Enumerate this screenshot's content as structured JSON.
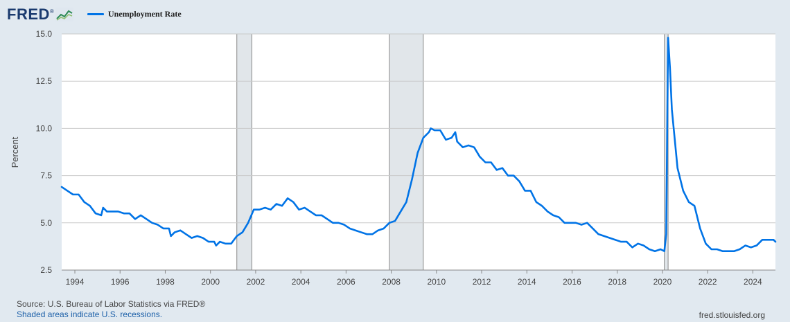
{
  "header": {
    "logo_text": "FRED",
    "logo_mark": "®",
    "legend_label": "Unemployment Rate",
    "series_color": "#0073e6"
  },
  "footer": {
    "source": "Source: U.S. Bureau of Labor Statistics via FRED®",
    "note": "Shaded areas indicate U.S. recessions.",
    "url": "fred.stlouisfed.org"
  },
  "chart_data": {
    "type": "line",
    "title": "",
    "xlabel": "",
    "ylabel": "Percent",
    "ylim": [
      2.5,
      15.0
    ],
    "xlim": [
      "1993-06",
      "2025-01"
    ],
    "y_ticks": [
      "2.5",
      "5.0",
      "7.5",
      "10.0",
      "12.5",
      "15.0"
    ],
    "x_ticks": [
      "1994",
      "1996",
      "1998",
      "2000",
      "2002",
      "2004",
      "2006",
      "2008",
      "2010",
      "2012",
      "2014",
      "2016",
      "2018",
      "2020",
      "2022",
      "2024"
    ],
    "grid": true,
    "legend_position": "top-left",
    "recessions": [
      {
        "start": "2001-03",
        "end": "2001-11"
      },
      {
        "start": "2007-12",
        "end": "2009-06"
      },
      {
        "start": "2020-02",
        "end": "2020-04"
      }
    ],
    "series": [
      {
        "name": "Unemployment Rate",
        "color": "#0073e6",
        "points": [
          [
            "1993-06",
            6.9
          ],
          [
            "1993-09",
            6.7
          ],
          [
            "1993-12",
            6.5
          ],
          [
            "1994-03",
            6.5
          ],
          [
            "1994-06",
            6.1
          ],
          [
            "1994-09",
            5.9
          ],
          [
            "1994-12",
            5.5
          ],
          [
            "1995-03",
            5.4
          ],
          [
            "1995-04",
            5.8
          ],
          [
            "1995-06",
            5.6
          ],
          [
            "1995-09",
            5.6
          ],
          [
            "1995-12",
            5.6
          ],
          [
            "1996-03",
            5.5
          ],
          [
            "1996-06",
            5.5
          ],
          [
            "1996-09",
            5.2
          ],
          [
            "1996-12",
            5.4
          ],
          [
            "1997-03",
            5.2
          ],
          [
            "1997-06",
            5.0
          ],
          [
            "1997-09",
            4.9
          ],
          [
            "1997-12",
            4.7
          ],
          [
            "1998-03",
            4.7
          ],
          [
            "1998-04",
            4.3
          ],
          [
            "1998-06",
            4.5
          ],
          [
            "1998-09",
            4.6
          ],
          [
            "1998-12",
            4.4
          ],
          [
            "1999-03",
            4.2
          ],
          [
            "1999-06",
            4.3
          ],
          [
            "1999-09",
            4.2
          ],
          [
            "1999-12",
            4.0
          ],
          [
            "2000-03",
            4.0
          ],
          [
            "2000-04",
            3.8
          ],
          [
            "2000-06",
            4.0
          ],
          [
            "2000-09",
            3.9
          ],
          [
            "2000-10",
            3.9
          ],
          [
            "2000-12",
            3.9
          ],
          [
            "2001-03",
            4.3
          ],
          [
            "2001-06",
            4.5
          ],
          [
            "2001-09",
            5.0
          ],
          [
            "2001-12",
            5.7
          ],
          [
            "2002-03",
            5.7
          ],
          [
            "2002-06",
            5.8
          ],
          [
            "2002-09",
            5.7
          ],
          [
            "2002-12",
            6.0
          ],
          [
            "2003-03",
            5.9
          ],
          [
            "2003-06",
            6.3
          ],
          [
            "2003-09",
            6.1
          ],
          [
            "2003-12",
            5.7
          ],
          [
            "2004-03",
            5.8
          ],
          [
            "2004-06",
            5.6
          ],
          [
            "2004-09",
            5.4
          ],
          [
            "2004-12",
            5.4
          ],
          [
            "2005-03",
            5.2
          ],
          [
            "2005-06",
            5.0
          ],
          [
            "2005-09",
            5.0
          ],
          [
            "2005-12",
            4.9
          ],
          [
            "2006-03",
            4.7
          ],
          [
            "2006-06",
            4.6
          ],
          [
            "2006-09",
            4.5
          ],
          [
            "2006-12",
            4.4
          ],
          [
            "2007-03",
            4.4
          ],
          [
            "2007-06",
            4.6
          ],
          [
            "2007-09",
            4.7
          ],
          [
            "2007-12",
            5.0
          ],
          [
            "2008-03",
            5.1
          ],
          [
            "2008-06",
            5.6
          ],
          [
            "2008-09",
            6.1
          ],
          [
            "2008-12",
            7.3
          ],
          [
            "2009-03",
            8.7
          ],
          [
            "2009-06",
            9.5
          ],
          [
            "2009-09",
            9.8
          ],
          [
            "2009-10",
            10.0
          ],
          [
            "2009-12",
            9.9
          ],
          [
            "2010-03",
            9.9
          ],
          [
            "2010-06",
            9.4
          ],
          [
            "2010-09",
            9.5
          ],
          [
            "2010-11",
            9.8
          ],
          [
            "2010-12",
            9.3
          ],
          [
            "2011-03",
            9.0
          ],
          [
            "2011-06",
            9.1
          ],
          [
            "2011-09",
            9.0
          ],
          [
            "2011-12",
            8.5
          ],
          [
            "2012-03",
            8.2
          ],
          [
            "2012-06",
            8.2
          ],
          [
            "2012-09",
            7.8
          ],
          [
            "2012-12",
            7.9
          ],
          [
            "2013-03",
            7.5
          ],
          [
            "2013-06",
            7.5
          ],
          [
            "2013-09",
            7.2
          ],
          [
            "2013-12",
            6.7
          ],
          [
            "2014-03",
            6.7
          ],
          [
            "2014-06",
            6.1
          ],
          [
            "2014-09",
            5.9
          ],
          [
            "2014-12",
            5.6
          ],
          [
            "2015-03",
            5.4
          ],
          [
            "2015-06",
            5.3
          ],
          [
            "2015-09",
            5.0
          ],
          [
            "2015-12",
            5.0
          ],
          [
            "2016-03",
            5.0
          ],
          [
            "2016-06",
            4.9
          ],
          [
            "2016-09",
            5.0
          ],
          [
            "2016-12",
            4.7
          ],
          [
            "2017-03",
            4.4
          ],
          [
            "2017-06",
            4.3
          ],
          [
            "2017-09",
            4.2
          ],
          [
            "2017-12",
            4.1
          ],
          [
            "2018-03",
            4.0
          ],
          [
            "2018-06",
            4.0
          ],
          [
            "2018-09",
            3.7
          ],
          [
            "2018-12",
            3.9
          ],
          [
            "2019-03",
            3.8
          ],
          [
            "2019-06",
            3.6
          ],
          [
            "2019-09",
            3.5
          ],
          [
            "2019-12",
            3.6
          ],
          [
            "2020-02",
            3.5
          ],
          [
            "2020-03",
            4.4
          ],
          [
            "2020-04",
            14.8
          ],
          [
            "2020-05",
            13.2
          ],
          [
            "2020-06",
            11.0
          ],
          [
            "2020-09",
            7.9
          ],
          [
            "2020-12",
            6.7
          ],
          [
            "2021-03",
            6.1
          ],
          [
            "2021-06",
            5.9
          ],
          [
            "2021-09",
            4.7
          ],
          [
            "2021-12",
            3.9
          ],
          [
            "2022-03",
            3.6
          ],
          [
            "2022-06",
            3.6
          ],
          [
            "2022-09",
            3.5
          ],
          [
            "2022-12",
            3.5
          ],
          [
            "2023-03",
            3.5
          ],
          [
            "2023-06",
            3.6
          ],
          [
            "2023-09",
            3.8
          ],
          [
            "2023-12",
            3.7
          ],
          [
            "2024-03",
            3.8
          ],
          [
            "2024-06",
            4.1
          ],
          [
            "2024-09",
            4.1
          ],
          [
            "2024-12",
            4.1
          ],
          [
            "2025-01",
            4.0
          ]
        ]
      }
    ]
  }
}
